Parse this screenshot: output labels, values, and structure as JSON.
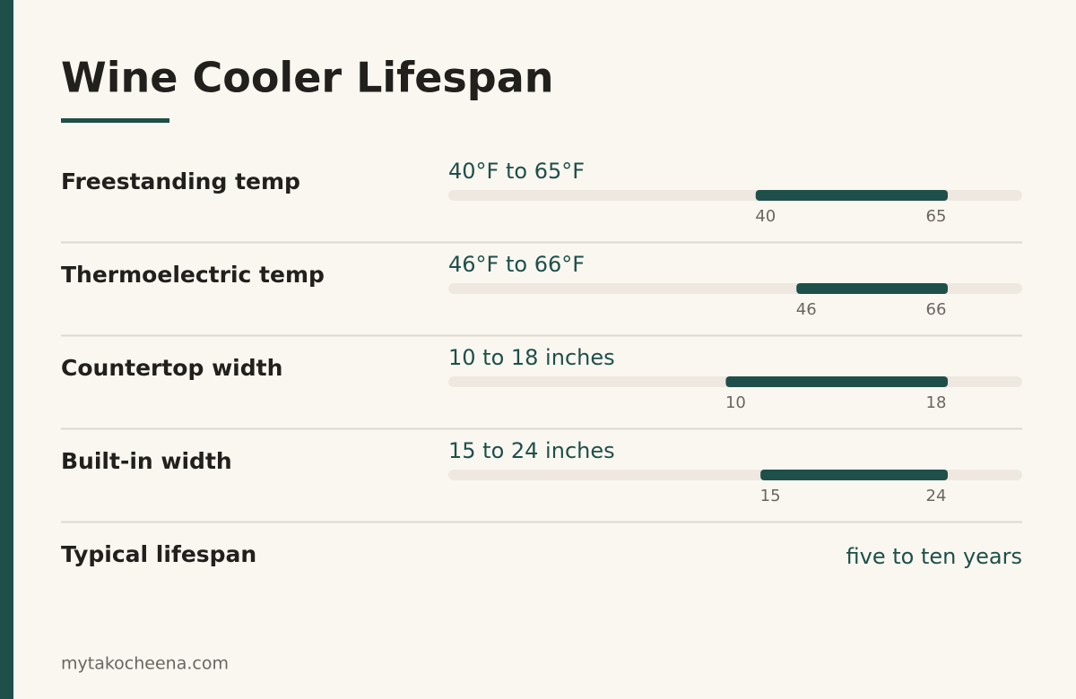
{
  "title": "Wine Cooler Lifespan",
  "rows": [
    {
      "label": "Freestanding temp",
      "range_text": "40°F to 65°F",
      "low": 40,
      "high": 65
    },
    {
      "label": "Thermoelectric temp",
      "range_text": "46°F to 66°F",
      "low": 46,
      "high": 66
    },
    {
      "label": "Countertop width",
      "range_text": "10 to 18 inches",
      "low": 10,
      "high": 18
    },
    {
      "label": "Built-in width",
      "range_text": "15 to 24 inches",
      "low": 15,
      "high": 24
    }
  ],
  "summary": {
    "label": "Typical lifespan",
    "value": "five to ten years"
  },
  "footer": "mytakocheena.com"
}
